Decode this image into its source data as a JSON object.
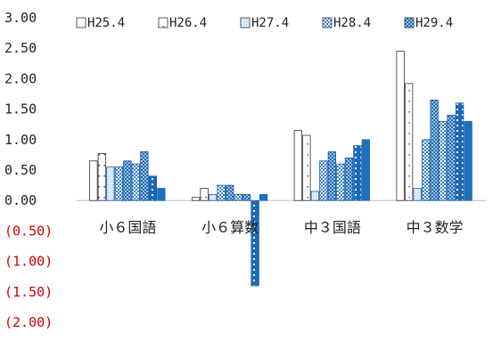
{
  "chart_data": {
    "type": "bar",
    "title": "",
    "xlabel": "",
    "ylabel": "",
    "ylim": [
      -2.0,
      3.0
    ],
    "yticks": [
      "3.00",
      "2.50",
      "2.00",
      "1.50",
      "1.00",
      "0.50",
      "0.00",
      "(0.50)",
      "(1.00)",
      "(1.50)",
      "(2.00)"
    ],
    "negative_tick_color": "#d00000",
    "positive_tick_color": "#222222",
    "grid": false,
    "legend_position": "top",
    "categories": [
      "小６国語",
      "小６算数",
      "中３国語",
      "中３数学"
    ],
    "series": [
      {
        "name": "H25.4",
        "values": [
          0.65,
          0.05,
          1.15,
          2.45
        ],
        "pattern": "white"
      },
      {
        "name": "H26.4",
        "values": [
          0.77,
          0.2,
          1.07,
          1.92
        ],
        "pattern": "white-dots"
      },
      {
        "name": "H27.4",
        "values": [
          0.55,
          0.1,
          0.15,
          0.2
        ],
        "pattern": "light-blue"
      },
      {
        "name": "H28.4",
        "values": [
          0.55,
          0.25,
          0.65,
          1.0
        ],
        "pattern": "blue-check"
      },
      {
        "name": "H29.4",
        "values": [
          0.65,
          0.25,
          0.8,
          1.65
        ],
        "pattern": "dense-check"
      },
      {
        "name": "",
        "values": [
          0.6,
          0.1,
          0.6,
          1.3
        ],
        "pattern": "blue-check"
      },
      {
        "name": "",
        "values": [
          0.8,
          0.1,
          0.7,
          1.4
        ],
        "pattern": "dense-check"
      },
      {
        "name": "",
        "values": [
          0.4,
          -1.4,
          0.9,
          1.6
        ],
        "pattern": "blue-dots"
      },
      {
        "name": "",
        "values": [
          0.2,
          0.1,
          1.0,
          1.3
        ],
        "pattern": "solid-blue"
      }
    ]
  }
}
